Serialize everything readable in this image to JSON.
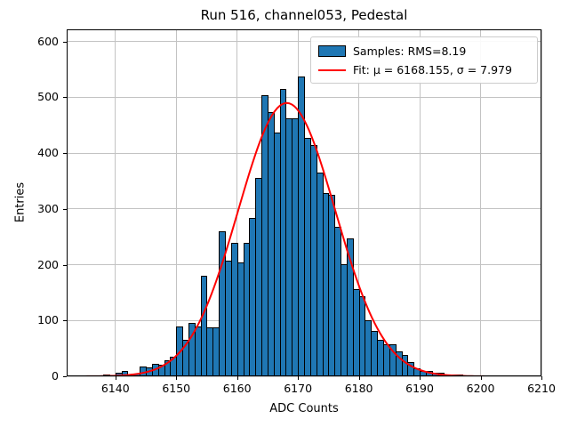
{
  "figure": {
    "title": "Run 516, channel053, Pedestal",
    "background": "#ffffff"
  },
  "axes": {
    "xlabel": "ADC Counts",
    "ylabel": "Entries",
    "xlim": [
      6132,
      6210
    ],
    "ylim": [
      0,
      622
    ],
    "xticks": [
      6140,
      6150,
      6160,
      6170,
      6180,
      6190,
      6200,
      6210
    ],
    "yticks": [
      0,
      100,
      200,
      300,
      400,
      500,
      600
    ],
    "grid": true,
    "grid_color": "#c3c3c3",
    "spine_color": "#000000"
  },
  "legend": {
    "position": "upper right",
    "border_color": "#cccccc",
    "entries": [
      {
        "type": "patch",
        "color": "#1f77b4",
        "label": "Samples: RMS=8.19"
      },
      {
        "type": "line",
        "color": "#ff0000",
        "label": "Fit: μ = 6168.155, σ = 7.979"
      }
    ]
  },
  "chart_data": {
    "type": "bar",
    "subtype": "histogram",
    "title": "Run 516, channel053, Pedestal",
    "xlabel": "ADC Counts",
    "ylabel": "Entries",
    "xlim": [
      6132,
      6210
    ],
    "ylim": [
      0,
      622
    ],
    "xticks": [
      6140,
      6150,
      6160,
      6170,
      6180,
      6190,
      6200,
      6210
    ],
    "yticks": [
      0,
      100,
      200,
      300,
      400,
      500,
      600
    ],
    "grid": true,
    "legend_position": "upper right",
    "bar_color": "#1f77b4",
    "bar_edge_color": "#000000",
    "bins_start": 6136,
    "bin_width": 1,
    "values": [
      2,
      1,
      3,
      2,
      6,
      9,
      3,
      5,
      18,
      16,
      22,
      20,
      29,
      35,
      89,
      66,
      95,
      89,
      180,
      87,
      87,
      260,
      207,
      239,
      204,
      240,
      284,
      355,
      504,
      474,
      437,
      515,
      462,
      462,
      537,
      427,
      414,
      365,
      329,
      326,
      268,
      201,
      247,
      156,
      143,
      100,
      82,
      66,
      58,
      57,
      45,
      38,
      25,
      15,
      10,
      9,
      6,
      6,
      4,
      3,
      3,
      2,
      1,
      1
    ],
    "sample_rms": 8.19,
    "fit": {
      "type": "gaussian",
      "mu": 6168.155,
      "sigma": 7.979,
      "amplitude": 490,
      "color": "#ff0000",
      "x_start": 6133.8,
      "x_end": 6200.6
    }
  }
}
